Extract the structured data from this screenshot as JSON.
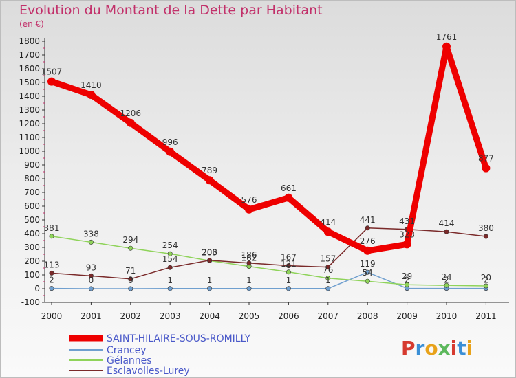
{
  "chart_data": {
    "type": "line",
    "title": "Evolution du Montant de la Dette par Habitant",
    "unit_label": "(en €)",
    "xlabel": "",
    "ylabel": "",
    "ylim": [
      -100,
      1800
    ],
    "y_ticks": [
      -100,
      0,
      100,
      200,
      300,
      400,
      500,
      600,
      700,
      800,
      900,
      1000,
      1100,
      1200,
      1300,
      1400,
      1500,
      1600,
      1700,
      1800
    ],
    "categories": [
      "2000",
      "2001",
      "2002",
      "2003",
      "2004",
      "2005",
      "2006",
      "2007",
      "2008",
      "2009",
      "2010",
      "2011"
    ],
    "series": [
      {
        "name": "SAINT-HILAIRE-SOUS-ROMILLY",
        "color": "#ee0000",
        "values": [
          1507,
          1410,
          1206,
          996,
          789,
          576,
          661,
          414,
          276,
          323,
          1761,
          877
        ]
      },
      {
        "name": "Crancey",
        "color": "#6f9fcf",
        "values": [
          2,
          0,
          0,
          1,
          1,
          1,
          1,
          1,
          119,
          2,
          2,
          2
        ]
      },
      {
        "name": "Gélannes",
        "color": "#8fd35a",
        "values": [
          381,
          338,
          294,
          254,
          203,
          162,
          121,
          76,
          54,
          29,
          24,
          20
        ]
      },
      {
        "name": "Esclavolles-Lurey",
        "color": "#7a2a2a",
        "values": [
          113,
          93,
          71,
          154,
          206,
          186,
          167,
          157,
          441,
          431,
          414,
          380
        ]
      }
    ],
    "grid": false,
    "legend_position": "bottom-left"
  },
  "branding": {
    "logo_text": "Proxiti",
    "logo_colors": [
      "#d63a2f",
      "#3b8fd6",
      "#e8a21a",
      "#5cb85c"
    ]
  }
}
